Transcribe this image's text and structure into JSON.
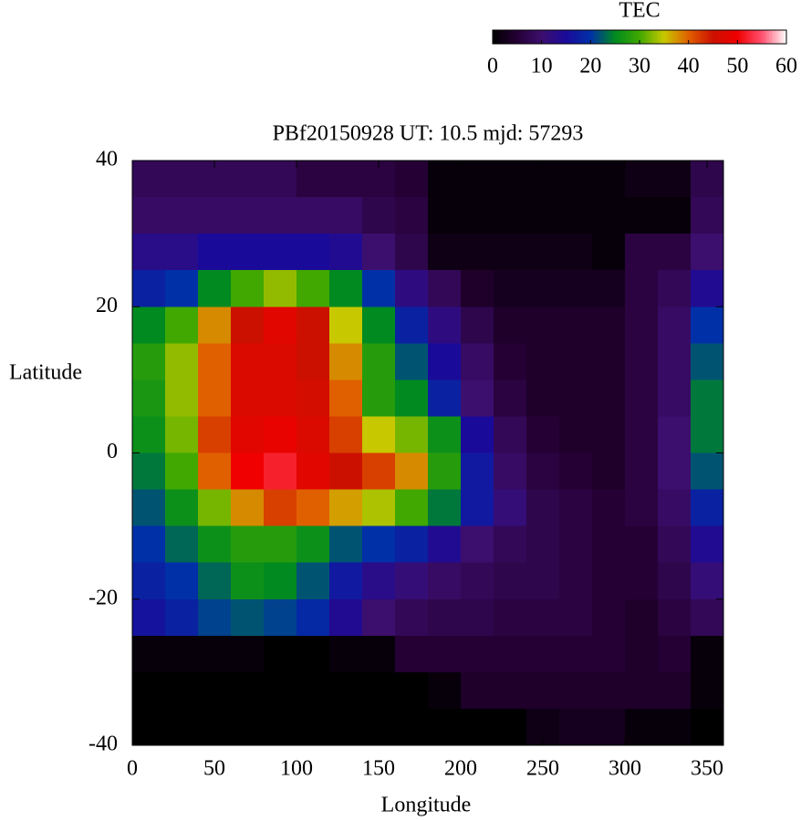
{
  "chart_data": {
    "type": "heatmap",
    "title": "PBf20150928  UT: 10.5  mjd: 57293",
    "xlabel": "Longitude",
    "ylabel": "Latitude",
    "x": [
      10,
      30,
      50,
      70,
      90,
      110,
      130,
      150,
      170,
      190,
      210,
      230,
      250,
      270,
      290,
      310,
      330,
      350
    ],
    "y": [
      37.5,
      32.5,
      27.5,
      22.5,
      17.5,
      12.5,
      7.5,
      2.5,
      -2.5,
      -7.5,
      -12.5,
      -17.5,
      -22.5,
      -27.5,
      -32.5,
      -37.5
    ],
    "values": [
      [
        8,
        8,
        8,
        8,
        8,
        6,
        6,
        6,
        5,
        1,
        1,
        1,
        1,
        1,
        1,
        2,
        2,
        7
      ],
      [
        9,
        9,
        9,
        9,
        9,
        9,
        9,
        7,
        6,
        1,
        1,
        1,
        1,
        1,
        1,
        1,
        1,
        8
      ],
      [
        13,
        13,
        15,
        15,
        15,
        15,
        14,
        10,
        7,
        2,
        2,
        2,
        2,
        2,
        1,
        6,
        6,
        10
      ],
      [
        18,
        20,
        25,
        30,
        33,
        30,
        25,
        20,
        12,
        8,
        4,
        3,
        3,
        3,
        3,
        6,
        8,
        14
      ],
      [
        25,
        30,
        38,
        45,
        48,
        45,
        35,
        25,
        18,
        12,
        7,
        4,
        4,
        4,
        4,
        6,
        9,
        20
      ],
      [
        28,
        33,
        40,
        47,
        47,
        45,
        38,
        28,
        22,
        15,
        9,
        5,
        4,
        4,
        4,
        6,
        9,
        22
      ],
      [
        27,
        33,
        40,
        47,
        47,
        46,
        40,
        28,
        25,
        18,
        10,
        6,
        4,
        4,
        4,
        6,
        9,
        24
      ],
      [
        26,
        32,
        42,
        48,
        49,
        47,
        42,
        35,
        32,
        26,
        15,
        8,
        5,
        4,
        4,
        6,
        10,
        24
      ],
      [
        24,
        30,
        40,
        50,
        52,
        48,
        45,
        42,
        38,
        28,
        17,
        9,
        6,
        5,
        4,
        6,
        10,
        22
      ],
      [
        22,
        26,
        32,
        38,
        42,
        40,
        37,
        34,
        30,
        24,
        17,
        11,
        7,
        6,
        5,
        6,
        9,
        18
      ],
      [
        20,
        23,
        26,
        28,
        28,
        26,
        22,
        20,
        18,
        14,
        10,
        8,
        7,
        6,
        5,
        5,
        8,
        14
      ],
      [
        18,
        20,
        23,
        26,
        25,
        22,
        17,
        13,
        11,
        9,
        8,
        7,
        7,
        6,
        5,
        5,
        7,
        11
      ],
      [
        16,
        18,
        21,
        22,
        21,
        19,
        14,
        10,
        8,
        7,
        7,
        6,
        6,
        6,
        5,
        4,
        6,
        8
      ],
      [
        1,
        1,
        1,
        1,
        0,
        0,
        1,
        1,
        5,
        5,
        5,
        5,
        5,
        5,
        5,
        4,
        5,
        1
      ],
      [
        0,
        0,
        0,
        0,
        0,
        0,
        0,
        0,
        0,
        1,
        4,
        4,
        4,
        4,
        4,
        4,
        4,
        1
      ],
      [
        0,
        0,
        0,
        0,
        0,
        0,
        0,
        0,
        0,
        0,
        0,
        0,
        2,
        3,
        3,
        1,
        1,
        0
      ]
    ],
    "xlim": [
      0,
      360
    ],
    "ylim": [
      -40,
      40
    ],
    "xticks": [
      0,
      50,
      100,
      150,
      200,
      250,
      300,
      350
    ],
    "yticks": [
      -40,
      -20,
      0,
      20,
      40
    ],
    "colorbar": {
      "label": "TEC",
      "zlim": [
        0,
        60
      ],
      "zticks": [
        0,
        10,
        20,
        30,
        40,
        50,
        60
      ],
      "colormap": [
        "#000000",
        "#250035",
        "#3c0e6e",
        "#1a0a9a",
        "#0030a8",
        "#008a20",
        "#40a800",
        "#c8c800",
        "#e06000",
        "#cc1000",
        "#f00000",
        "#ff5070",
        "#ffffff"
      ]
    }
  }
}
